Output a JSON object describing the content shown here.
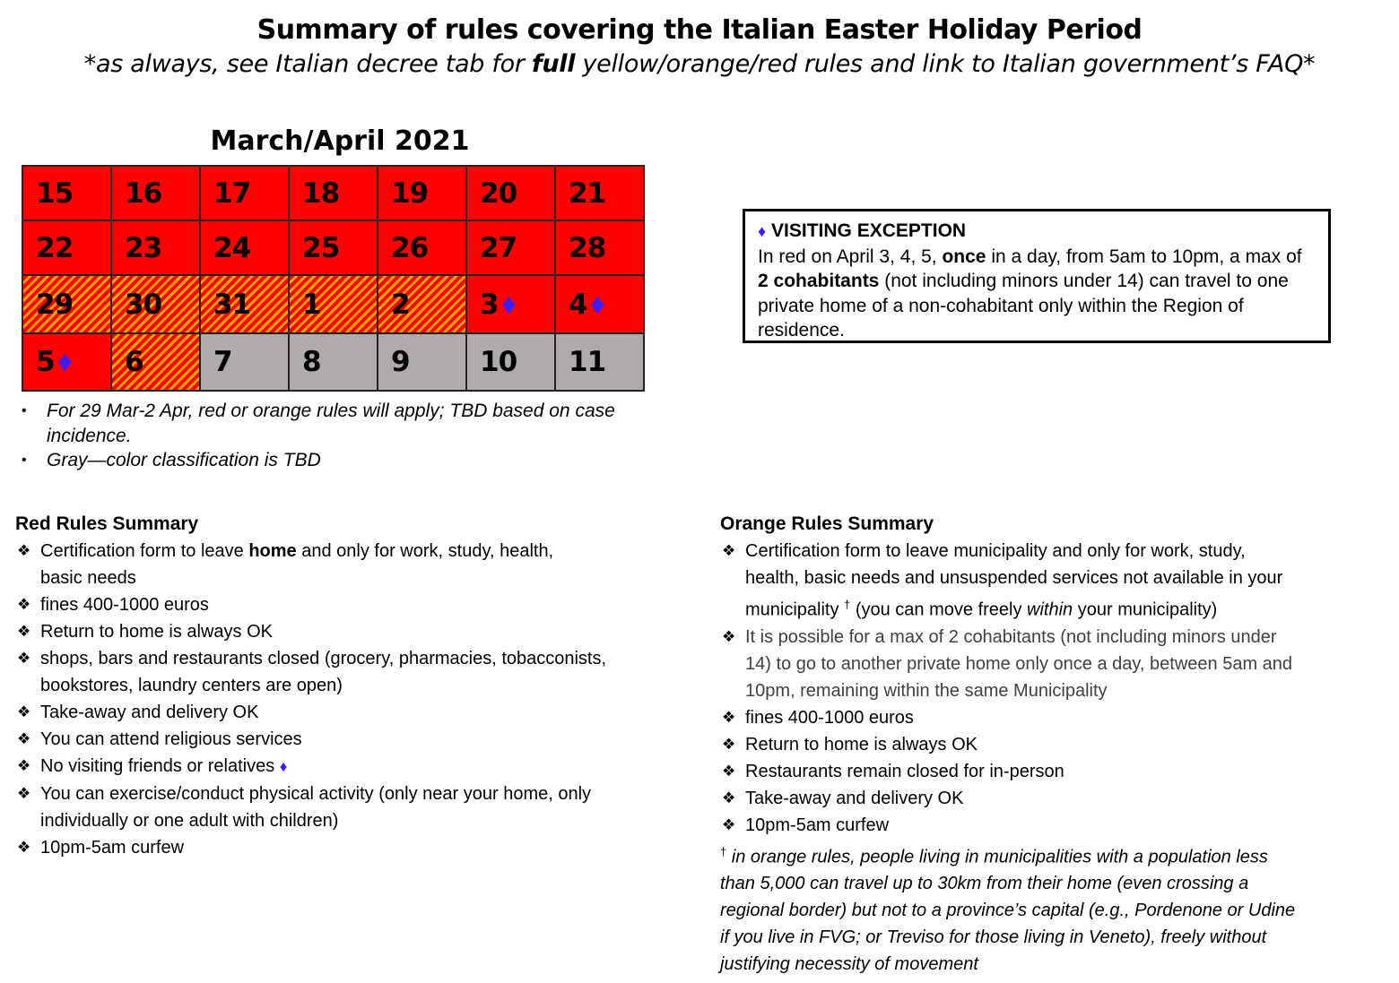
{
  "title": "Summary of rules covering the Italian Easter Holiday Period",
  "subtitle": [
    {
      "t": "*as always, see Italian decree tab for "
    },
    {
      "t": "full",
      "b": true
    },
    {
      "t": " yellow/orange/red rules and link to Italian government’s FAQ*"
    }
  ],
  "calendar": {
    "title": "March/April 2021",
    "colors": {
      "red": "#ff0000",
      "orange": "#ffa500",
      "gray": "#afabab",
      "diamond": "#3b1cff"
    },
    "rows": [
      [
        {
          "d": "15",
          "c": "red"
        },
        {
          "d": "16",
          "c": "red"
        },
        {
          "d": "17",
          "c": "red"
        },
        {
          "d": "18",
          "c": "red"
        },
        {
          "d": "19",
          "c": "red"
        },
        {
          "d": "20",
          "c": "red"
        },
        {
          "d": "21",
          "c": "red"
        }
      ],
      [
        {
          "d": "22",
          "c": "red"
        },
        {
          "d": "23",
          "c": "red"
        },
        {
          "d": "24",
          "c": "red"
        },
        {
          "d": "25",
          "c": "red"
        },
        {
          "d": "26",
          "c": "red"
        },
        {
          "d": "27",
          "c": "red"
        },
        {
          "d": "28",
          "c": "red"
        }
      ],
      [
        {
          "d": "29",
          "c": "hatch"
        },
        {
          "d": "30",
          "c": "hatch"
        },
        {
          "d": "31",
          "c": "hatch"
        },
        {
          "d": "1",
          "c": "hatch"
        },
        {
          "d": "2",
          "c": "hatch"
        },
        {
          "d": "3",
          "c": "red",
          "diamond": true
        },
        {
          "d": "4",
          "c": "red",
          "diamond": true
        }
      ],
      [
        {
          "d": "5",
          "c": "red",
          "diamond": true
        },
        {
          "d": "6",
          "c": "hatch"
        },
        {
          "d": "7",
          "c": "gray"
        },
        {
          "d": "8",
          "c": "gray"
        },
        {
          "d": "9",
          "c": "gray"
        },
        {
          "d": "10",
          "c": "gray"
        },
        {
          "d": "11",
          "c": "gray"
        }
      ]
    ],
    "notes": [
      "For 29 Mar-2 Apr, red or orange rules will apply; TBD based on case incidence.",
      "Gray—color classification is TBD"
    ]
  },
  "visiting": {
    "diamond": "♦",
    "heading": "VISITING EXCEPTION",
    "body": [
      {
        "t": "In red on April 3, 4, 5, "
      },
      {
        "t": "once",
        "b": true
      },
      {
        "t": " in a day, from 5am to 10pm, a max of "
      },
      {
        "t": "2 cohabitants",
        "b": true
      },
      {
        "t": " (not including minors under 14) can travel to one private home of a non-cohabitant only within the Region of residence."
      }
    ]
  },
  "bullet": "❖",
  "red_rules": {
    "heading": "Red Rules Summary",
    "items": [
      [
        [
          {
            "t": "Certification form to leave "
          },
          {
            "t": "home",
            "b": true
          },
          {
            "t": " and only for work, study, health,"
          }
        ],
        [
          {
            "t": "basic needs"
          }
        ]
      ],
      [
        [
          {
            "t": "fines 400-1000 euros"
          }
        ]
      ],
      [
        [
          {
            "t": "Return to home is always OK"
          }
        ]
      ],
      [
        [
          {
            "t": "shops, bars and restaurants closed (grocery, pharmacies, tobacconists,"
          }
        ],
        [
          {
            "t": "bookstores, laundry centers are open)"
          }
        ]
      ],
      [
        [
          {
            "t": "Take-away and delivery OK"
          }
        ]
      ],
      [
        [
          {
            "t": "You can attend religious services"
          }
        ]
      ],
      [
        [
          {
            "t": "No visiting friends or relatives "
          },
          {
            "t": "♦",
            "dia": true
          }
        ]
      ],
      [
        [
          {
            "t": "You can exercise/conduct physical activity (only near your home, only"
          }
        ],
        [
          {
            "t": "individually or one adult with children)"
          }
        ]
      ],
      [
        [
          {
            "t": "10pm-5am curfew"
          }
        ]
      ]
    ]
  },
  "orange_rules": {
    "heading": "Orange Rules Summary",
    "items": [
      [
        [
          {
            "t": "Certification form to leave municipality and only for work, study,"
          }
        ],
        [
          {
            "t": "health, basic needs and unsuspended services not available in your"
          }
        ],
        [
          {
            "t": "municipality "
          },
          {
            "t": "†",
            "sup": true
          },
          {
            "t": " (you can move freely "
          },
          {
            "t": "within",
            "i": true
          },
          {
            "t": " your municipality)"
          }
        ]
      ],
      [
        [
          {
            "t": "It is possible for a max of 2 cohabitants (not including minors under",
            "g": true
          }
        ],
        [
          {
            "t": "14) to go to another private home only once a day, between 5am and",
            "g": true
          }
        ],
        [
          {
            "t": "10pm, remaining within the same Municipality",
            "g": true
          }
        ]
      ],
      [
        [
          {
            "t": "fines 400-1000 euros"
          }
        ]
      ],
      [
        [
          {
            "t": "Return to home is always OK"
          }
        ]
      ],
      [
        [
          {
            "t": "Restaurants remain closed for in-person"
          }
        ]
      ],
      [
        [
          {
            "t": "Take-away and delivery OK"
          }
        ]
      ],
      [
        [
          {
            "t": "10pm-5am curfew"
          }
        ]
      ]
    ],
    "footnote": [
      [
        {
          "t": "†",
          "sup": true,
          "ni": true
        },
        {
          "t": " in orange rules, people living in municipalities with a population less"
        }
      ],
      [
        {
          "t": "than 5,000 can travel up to 30km from their home (even crossing a"
        }
      ],
      [
        {
          "t": "regional border) but not to a province’s capital (e.g., Pordenone or Udine"
        }
      ],
      [
        {
          "t": "if you live in FVG; or Treviso for those living in Veneto), freely without"
        }
      ],
      [
        {
          "t": "justifying necessity of movement"
        }
      ]
    ]
  }
}
